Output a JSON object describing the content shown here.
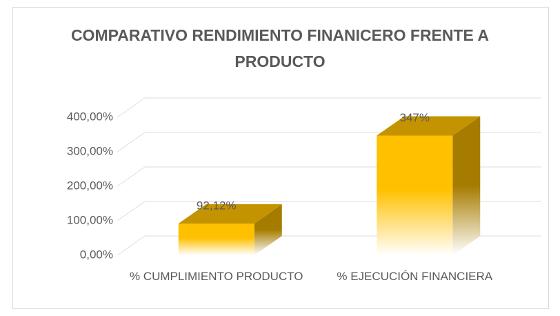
{
  "chart_data": {
    "type": "bar3d",
    "title": "COMPARATIVO RENDIMIENTO FINANICERO FRENTE A PRODUCTO",
    "categories": [
      "% CUMPLIMIENTO PRODUCTO",
      "% EJECUCIÓN FINANCIERA"
    ],
    "values": [
      92.12,
      347
    ],
    "value_labels": [
      "92,12%",
      "347%"
    ],
    "color": "#ffc000",
    "ylim": [
      0,
      400
    ],
    "yticks": [
      {
        "value": 0,
        "label": "0,00%"
      },
      {
        "value": 100,
        "label": "100,00%"
      },
      {
        "value": 200,
        "label": "200,00%"
      },
      {
        "value": 300,
        "label": "300,00%"
      },
      {
        "value": 400,
        "label": "400,00%"
      }
    ],
    "grid": true
  }
}
